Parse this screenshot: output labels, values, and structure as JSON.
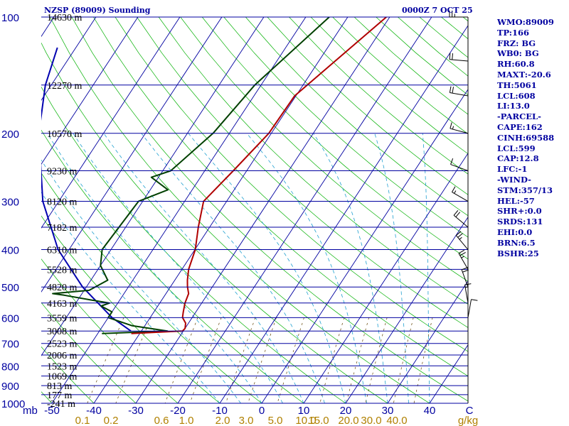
{
  "header": {
    "station": "NZSP (89009) Sounding",
    "time": "0000Z  7 OCT 25"
  },
  "indices": [
    "WMO:89009",
    "TP:166",
    "FRZ: BG",
    "WB0: BG",
    "RH:60.8",
    "MAXT:-20.6",
    "TH:5061",
    "LCL:608",
    "LI:13.0",
    "-PARCEL-",
    "CAPE:162",
    "CINH:69588",
    "LCL:599",
    "CAP:12.8",
    "LFC:-1",
    "-WIND-",
    "STM:357/13",
    "HEL:-57",
    "SHR+:0.0",
    "SRDS:131",
    "EHI:0.0",
    "BRN:6.5",
    "BSHR:25"
  ],
  "colors": {
    "isobar": "#0000a0",
    "isotherm": "#0000a0",
    "dry_adiabat": "#00b000",
    "moist_adiabat": "#20a0d0",
    "mixing_ratio": "#604000",
    "temperature": "#b00000",
    "dewpoint": "#004000",
    "parcel": "#0000b0",
    "axis_text": "#0000a0",
    "mix_text": "#b08000"
  },
  "chart_data": {
    "type": "line",
    "title": "NZSP (89009) Sounding",
    "subtitle": "0000Z  7 OCT 25",
    "xlabel": "C",
    "ylabel": "mb",
    "x_ticks": [
      -50,
      -40,
      -30,
      -20,
      -10,
      0,
      10,
      20,
      30,
      40
    ],
    "x_unit": "C",
    "pressure_ticks": [
      100,
      200,
      300,
      400,
      500,
      600,
      700,
      800,
      900,
      1000
    ],
    "pressure_axis_label": "mb",
    "mixing_ratio_ticks": [
      "0.1",
      "0.2",
      "0.6",
      "1.0",
      "2.0",
      "3.0",
      "5.0",
      "10.0",
      "15.0",
      "20.0",
      "30.0",
      "40.0"
    ],
    "mixing_ratio_unit": "g/kg",
    "height_labels": [
      {
        "p": 100,
        "label": "14630 m"
      },
      {
        "p": 150,
        "label": "12270 m"
      },
      {
        "p": 200,
        "label": "10570 m"
      },
      {
        "p": 250,
        "label": "9230 m"
      },
      {
        "p": 300,
        "label": "8120 m"
      },
      {
        "p": 350,
        "label": "7182 m"
      },
      {
        "p": 400,
        "label": "6310 m"
      },
      {
        "p": 450,
        "label": "5528 m"
      },
      {
        "p": 500,
        "label": "4820 m"
      },
      {
        "p": 550,
        "label": "4163 m"
      },
      {
        "p": 600,
        "label": "3559 m"
      },
      {
        "p": 650,
        "label": "3008 m"
      },
      {
        "p": 700,
        "label": "2523 m"
      },
      {
        "p": 750,
        "label": "2006 m"
      },
      {
        "p": 800,
        "label": "1523 m"
      },
      {
        "p": 850,
        "label": "1069 m"
      },
      {
        "p": 900,
        "label": "813 m"
      },
      {
        "p": 950,
        "label": "177 m"
      },
      {
        "p": 1000,
        "label": "-241 m"
      }
    ],
    "temperature": {
      "name": "Temperature",
      "points": [
        [
          100,
          -30.8
        ],
        [
          145,
          -38.3
        ],
        [
          160,
          -40.3
        ],
        [
          200,
          -40.6
        ],
        [
          250,
          -43.2
        ],
        [
          300,
          -45.5
        ],
        [
          350,
          -42.7
        ],
        [
          400,
          -39.9
        ],
        [
          450,
          -38.4
        ],
        [
          480,
          -37.0
        ],
        [
          500,
          -35.9
        ],
        [
          520,
          -34.6
        ],
        [
          550,
          -34.0
        ],
        [
          580,
          -33.0
        ],
        [
          600,
          -32.3
        ],
        [
          620,
          -30.7
        ],
        [
          640,
          -30.0
        ],
        [
          650,
          -30.2
        ],
        [
          660,
          -42.0
        ]
      ]
    },
    "dewpoint": {
      "name": "Dewpoint",
      "points": [
        [
          100,
          -44.4
        ],
        [
          150,
          -51.5
        ],
        [
          200,
          -53.9
        ],
        [
          250,
          -58.1
        ],
        [
          260,
          -61.7
        ],
        [
          280,
          -55.8
        ],
        [
          300,
          -61.0
        ],
        [
          400,
          -62.1
        ],
        [
          440,
          -60.0
        ],
        [
          480,
          -56.0
        ],
        [
          500,
          -57.9
        ],
        [
          510,
          -58.8
        ],
        [
          520,
          -67.0
        ],
        [
          525,
          -64.0
        ],
        [
          540,
          -57.0
        ],
        [
          550,
          -52.0
        ],
        [
          560,
          -53.5
        ],
        [
          580,
          -50.0
        ],
        [
          600,
          -50.0
        ],
        [
          630,
          -43.0
        ],
        [
          650,
          -33.8
        ],
        [
          660,
          -49.0
        ]
      ]
    },
    "parcel": {
      "name": "Parcel",
      "points": [
        [
          120,
          -104.4
        ],
        [
          150,
          -101.4
        ],
        [
          200,
          -95.4
        ],
        [
          300,
          -83.8
        ],
        [
          400,
          -72.6
        ],
        [
          500,
          -60.9
        ],
        [
          600,
          -49.1
        ],
        [
          650,
          -42.5
        ]
      ]
    },
    "wind_barbs": [
      {
        "p": 100,
        "dir": 270,
        "kt": 25
      },
      {
        "p": 130,
        "dir": 275,
        "kt": 20
      },
      {
        "p": 160,
        "dir": 280,
        "kt": 20
      },
      {
        "p": 200,
        "dir": 285,
        "kt": 15
      },
      {
        "p": 250,
        "dir": 290,
        "kt": 10
      },
      {
        "p": 300,
        "dir": 300,
        "kt": 15
      },
      {
        "p": 350,
        "dir": 310,
        "kt": 20
      },
      {
        "p": 400,
        "dir": 320,
        "kt": 25
      },
      {
        "p": 450,
        "dir": 330,
        "kt": 25
      },
      {
        "p": 500,
        "dir": 340,
        "kt": 20
      },
      {
        "p": 550,
        "dir": 350,
        "kt": 15
      },
      {
        "p": 600,
        "dir": 10,
        "kt": 10
      }
    ]
  }
}
